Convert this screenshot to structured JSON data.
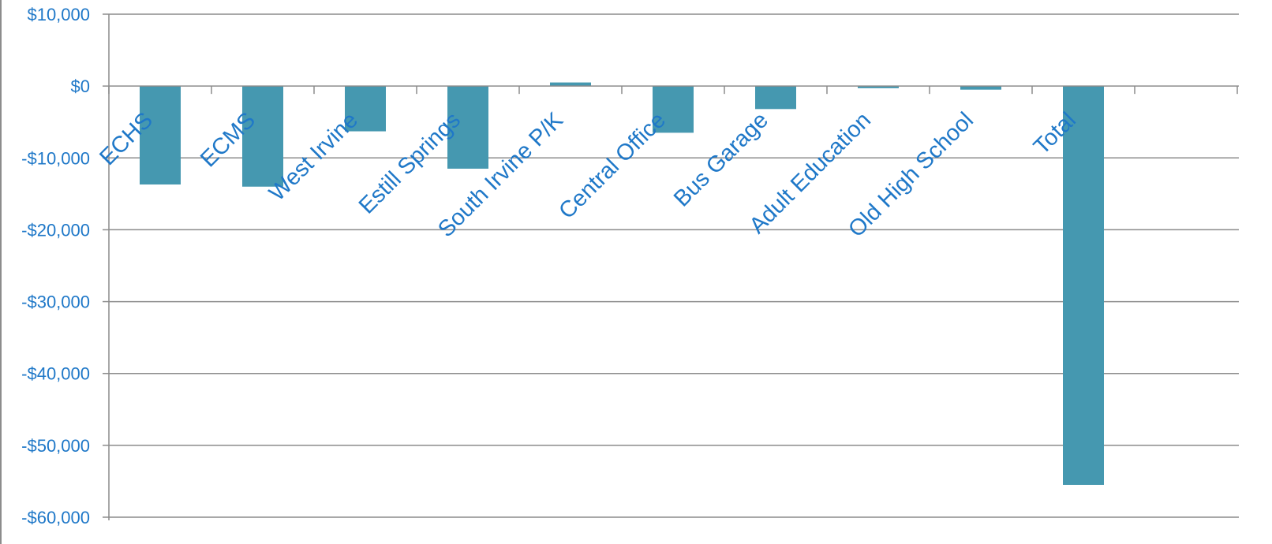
{
  "chart_data": {
    "type": "bar",
    "title": "",
    "xlabel": "",
    "ylabel": "",
    "categories": [
      "ECHS",
      "ECMS",
      "West Irvine",
      "Estill Springs",
      "South Irvine P/K",
      "Central Office",
      "Bus Garage",
      "Adult Education",
      "Old High School",
      "Total"
    ],
    "values": [
      -13700,
      -14000,
      -6300,
      -11500,
      500,
      -6500,
      -3200,
      -300,
      -500,
      -55500
    ],
    "ylim": [
      -60000,
      10000
    ],
    "yticks": [
      10000,
      0,
      -10000,
      -20000,
      -30000,
      -40000,
      -50000,
      -60000
    ],
    "ytick_labels": [
      "$10,000",
      "$0",
      "-$10,000",
      "-$20,000",
      "-$30,000",
      "-$40,000",
      "-$50,000",
      "-$60,000"
    ],
    "grid": true,
    "legend": "none",
    "colors": {
      "bar": "#4598b0",
      "label": "#1f78c8",
      "grid": "#8c8c8c"
    }
  }
}
